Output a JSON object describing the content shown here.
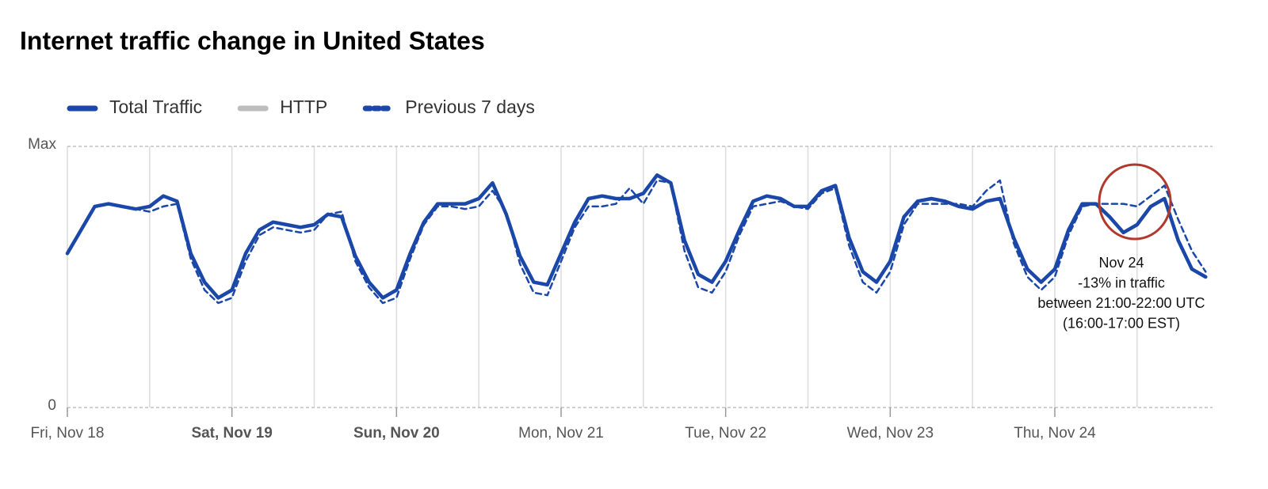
{
  "chart_data": {
    "type": "line",
    "title": "Internet traffic change in United States",
    "xlim": [
      0,
      167
    ],
    "xticks": [
      {
        "value": 0,
        "label": "Fri, Nov 18"
      },
      {
        "value": 24,
        "label": "Sat, Nov 19"
      },
      {
        "value": 48,
        "label": "Sun, Nov 20"
      },
      {
        "value": 72,
        "label": "Mon, Nov 21"
      },
      {
        "value": 96,
        "label": "Tue, Nov 22"
      },
      {
        "value": 120,
        "label": "Wed, Nov 23"
      },
      {
        "value": 144,
        "label": "Thu, Nov 24"
      }
    ],
    "xgrid": [
      0,
      12,
      24,
      36,
      48,
      60,
      72,
      84,
      96,
      108,
      120,
      132,
      144,
      156
    ],
    "ylim": [
      0,
      1
    ],
    "yticks": [
      0,
      {
        "value": 1,
        "label": "Max"
      }
    ],
    "x": [
      0,
      2,
      4,
      6,
      8,
      10,
      12,
      14,
      16,
      18,
      20,
      22,
      24,
      26,
      28,
      30,
      32,
      34,
      36,
      38,
      40,
      42,
      44,
      46,
      48,
      50,
      52,
      54,
      56,
      58,
      60,
      62,
      64,
      66,
      68,
      70,
      72,
      74,
      76,
      78,
      80,
      82,
      84,
      86,
      88,
      90,
      92,
      94,
      96,
      98,
      100,
      102,
      104,
      106,
      108,
      110,
      112,
      114,
      116,
      118,
      120,
      122,
      124,
      126,
      128,
      130,
      132,
      134,
      136,
      138,
      140,
      142,
      144,
      146,
      148,
      150,
      152,
      154,
      156,
      158,
      160,
      162,
      164,
      166
    ],
    "series": [
      {
        "name": "Total Traffic",
        "color": "#1a47a8",
        "dashed": false,
        "values": [
          0.59,
          0.68,
          0.77,
          0.78,
          0.77,
          0.76,
          0.77,
          0.81,
          0.79,
          0.59,
          0.48,
          0.42,
          0.45,
          0.59,
          0.68,
          0.71,
          0.7,
          0.69,
          0.7,
          0.74,
          0.73,
          0.58,
          0.48,
          0.42,
          0.45,
          0.59,
          0.71,
          0.78,
          0.78,
          0.78,
          0.8,
          0.86,
          0.74,
          0.58,
          0.48,
          0.47,
          0.59,
          0.71,
          0.8,
          0.81,
          0.8,
          0.8,
          0.82,
          0.89,
          0.86,
          0.64,
          0.51,
          0.48,
          0.56,
          0.68,
          0.79,
          0.81,
          0.8,
          0.77,
          0.77,
          0.83,
          0.85,
          0.65,
          0.52,
          0.48,
          0.56,
          0.73,
          0.79,
          0.8,
          0.79,
          0.77,
          0.76,
          0.79,
          0.8,
          0.65,
          0.53,
          0.48,
          0.53,
          0.68,
          0.78,
          0.78,
          0.73,
          0.67,
          0.7,
          0.77,
          0.8,
          0.64,
          0.53,
          0.5
        ]
      },
      {
        "name": "HTTP",
        "color": "#bdbdbd",
        "dashed": false,
        "hidden": true
      },
      {
        "name": "Previous 7 days",
        "color": "#1a47a8",
        "dashed": true,
        "values": [
          0.59,
          0.68,
          0.77,
          0.78,
          0.77,
          0.76,
          0.75,
          0.77,
          0.78,
          0.57,
          0.45,
          0.4,
          0.42,
          0.56,
          0.66,
          0.69,
          0.68,
          0.67,
          0.68,
          0.74,
          0.75,
          0.56,
          0.46,
          0.4,
          0.42,
          0.57,
          0.7,
          0.77,
          0.77,
          0.76,
          0.77,
          0.83,
          0.75,
          0.55,
          0.44,
          0.43,
          0.56,
          0.69,
          0.77,
          0.77,
          0.78,
          0.84,
          0.78,
          0.87,
          0.86,
          0.6,
          0.46,
          0.44,
          0.52,
          0.66,
          0.77,
          0.78,
          0.79,
          0.77,
          0.76,
          0.82,
          0.84,
          0.62,
          0.48,
          0.44,
          0.52,
          0.7,
          0.78,
          0.78,
          0.78,
          0.78,
          0.77,
          0.83,
          0.87,
          0.63,
          0.5,
          0.45,
          0.5,
          0.66,
          0.77,
          0.78,
          0.78,
          0.78,
          0.77,
          0.81,
          0.85,
          0.72,
          0.6,
          0.52
        ]
      }
    ],
    "annotation": [
      "Nov 24",
      "-13% in traffic",
      "between 21:00-22:00 UTC",
      "(16:00-17:00 EST)"
    ]
  }
}
